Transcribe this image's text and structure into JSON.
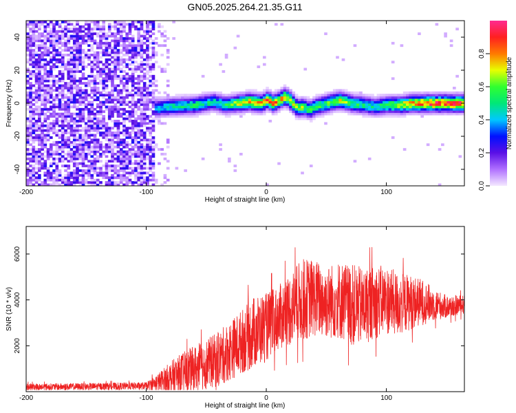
{
  "title": "GN05.2025.264.21.35.G11",
  "colors": {
    "axis": "#000000",
    "snr_line": "#ee2222",
    "colormap": [
      "#f4e8ff",
      "#b070ff",
      "#5a10e6",
      "#0010ff",
      "#00c8ff",
      "#00e878",
      "#30ff30",
      "#e8ff00",
      "#ff7a00",
      "#ff2020",
      "#ff2a90"
    ]
  },
  "chart_data": [
    {
      "type": "heatmap",
      "title": "",
      "xlabel": "Height of straight line (km)",
      "ylabel": "Frequency (Hz)",
      "xlim": [
        -200,
        165
      ],
      "ylim": [
        -50,
        50
      ],
      "xticks": [
        -200,
        -100,
        0,
        100
      ],
      "xtick_labels": [
        "-200",
        "-100",
        "0",
        "100"
      ],
      "yticks": [
        -40,
        -20,
        0,
        20,
        40
      ],
      "ytick_labels": [
        "-40",
        "-20",
        "0",
        "20",
        "40"
      ],
      "noise_region_x": [
        -200,
        -95
      ],
      "ridge": {
        "x": [
          -95,
          -80,
          -60,
          -45,
          -35,
          -25,
          -15,
          -5,
          0,
          5,
          10,
          15,
          20,
          25,
          30,
          35,
          40,
          45,
          55,
          60,
          70,
          80,
          90,
          100,
          110,
          120,
          130,
          140,
          150,
          165
        ],
        "freq": [
          -3,
          -2,
          -1,
          1,
          -1,
          0,
          1,
          0,
          2,
          0,
          2,
          4,
          1,
          -3,
          -2,
          -4,
          -2,
          -1,
          1,
          2,
          0,
          -1,
          -2,
          -1,
          -1,
          0,
          0,
          0,
          0,
          0
        ],
        "amplitude": [
          0.45,
          0.5,
          0.55,
          0.5,
          0.55,
          0.7,
          0.8,
          0.8,
          0.85,
          0.85,
          0.8,
          0.8,
          0.85,
          0.7,
          0.65,
          0.6,
          0.6,
          0.6,
          0.65,
          0.7,
          0.6,
          0.55,
          0.5,
          0.6,
          0.7,
          0.85,
          0.9,
          0.95,
          0.95,
          0.95
        ]
      },
      "colorbar": {
        "label": "Normalized spectral amplitude",
        "range": [
          0,
          1
        ],
        "ticks": [
          0.0,
          0.2,
          0.4,
          0.6,
          0.8
        ],
        "tick_labels": [
          "0.0",
          "0.2",
          "0.4",
          "0.6",
          "0.8"
        ]
      }
    },
    {
      "type": "line",
      "title": "",
      "xlabel": "Height of straight line (km)",
      "ylabel": "SNR (10 * v/v)",
      "xlim": [
        -200,
        165
      ],
      "ylim": [
        0,
        7200
      ],
      "xticks": [
        -200,
        -100,
        0,
        100
      ],
      "xtick_labels": [
        "-200",
        "-100",
        "0",
        "100"
      ],
      "yticks": [
        2000,
        4000,
        6000
      ],
      "ytick_labels": [
        "2000",
        "4000",
        "6000"
      ],
      "envelope": {
        "x": [
          -200,
          -150,
          -100,
          -90,
          -80,
          -70,
          -60,
          -50,
          -40,
          -30,
          -20,
          -10,
          0,
          10,
          20,
          30,
          40,
          50,
          60,
          70,
          80,
          90,
          100,
          110,
          120,
          130,
          140,
          150,
          165
        ],
        "mean": [
          200,
          220,
          250,
          400,
          600,
          800,
          1000,
          1200,
          1400,
          1800,
          2200,
          2600,
          2800,
          3200,
          3600,
          4000,
          4100,
          3900,
          4000,
          3800,
          3700,
          3900,
          4000,
          3800,
          3900,
          3900,
          3800,
          3700,
          3800
        ],
        "amp": [
          150,
          150,
          160,
          400,
          700,
          900,
          1000,
          1100,
          1200,
          1300,
          1400,
          1600,
          1500,
          1400,
          1600,
          1800,
          1700,
          1600,
          1700,
          1800,
          1700,
          1600,
          1500,
          1400,
          1200,
          1000,
          700,
          500,
          400
        ]
      }
    }
  ]
}
